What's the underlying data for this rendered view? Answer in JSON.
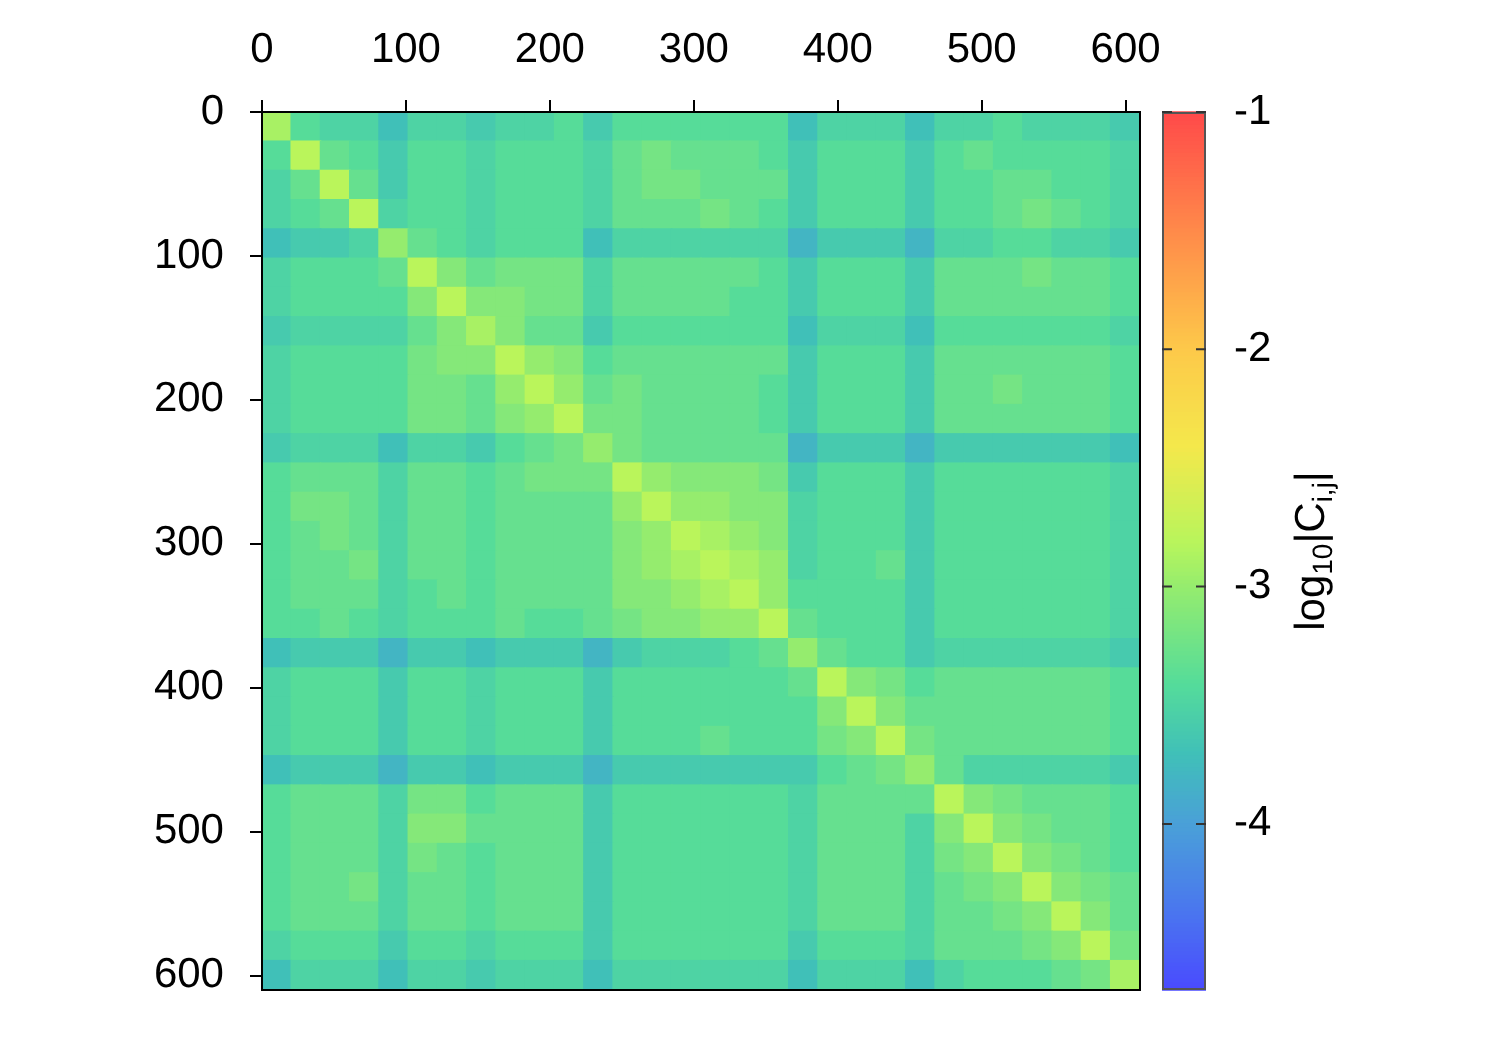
{
  "chart_data": {
    "type": "heatmap",
    "clabel": "log$_{10}$|C$_{i,j}$|",
    "xlim": [
      0,
      610
    ],
    "xticks": [
      0,
      100,
      200,
      300,
      400,
      500,
      600
    ],
    "ylim": [
      610,
      0
    ],
    "yticks": [
      0,
      100,
      200,
      300,
      400,
      500,
      600
    ],
    "clim": [
      -4.7,
      -1
    ],
    "cticks": [
      -1,
      -2,
      -3,
      -4
    ],
    "cells": [
      [
        -2.9,
        -3.4,
        -3.5,
        -3.5,
        -3.7,
        -3.5,
        -3.5,
        -3.6,
        -3.5,
        -3.5,
        -3.4,
        -3.6,
        -3.4,
        -3.4,
        -3.4,
        -3.4,
        -3.4,
        -3.4,
        -3.7,
        -3.5,
        -3.5,
        -3.5,
        -3.7,
        -3.5,
        -3.5,
        -3.4,
        -3.5,
        -3.5,
        -3.5,
        -3.6
      ],
      [
        -3.4,
        -2.8,
        -3.3,
        -3.4,
        -3.6,
        -3.4,
        -3.4,
        -3.5,
        -3.4,
        -3.4,
        -3.4,
        -3.5,
        -3.3,
        -3.2,
        -3.3,
        -3.3,
        -3.3,
        -3.4,
        -3.6,
        -3.4,
        -3.4,
        -3.4,
        -3.6,
        -3.4,
        -3.3,
        -3.4,
        -3.4,
        -3.4,
        -3.4,
        -3.5
      ],
      [
        -3.5,
        -3.3,
        -2.8,
        -3.3,
        -3.6,
        -3.4,
        -3.4,
        -3.5,
        -3.4,
        -3.4,
        -3.4,
        -3.5,
        -3.3,
        -3.2,
        -3.2,
        -3.3,
        -3.3,
        -3.3,
        -3.6,
        -3.4,
        -3.4,
        -3.4,
        -3.6,
        -3.4,
        -3.4,
        -3.3,
        -3.3,
        -3.4,
        -3.4,
        -3.5
      ],
      [
        -3.5,
        -3.4,
        -3.3,
        -2.8,
        -3.5,
        -3.4,
        -3.4,
        -3.5,
        -3.4,
        -3.4,
        -3.4,
        -3.5,
        -3.3,
        -3.3,
        -3.3,
        -3.2,
        -3.3,
        -3.4,
        -3.6,
        -3.4,
        -3.4,
        -3.4,
        -3.6,
        -3.4,
        -3.4,
        -3.3,
        -3.2,
        -3.3,
        -3.4,
        -3.5
      ],
      [
        -3.7,
        -3.6,
        -3.6,
        -3.5,
        -3.0,
        -3.3,
        -3.4,
        -3.5,
        -3.4,
        -3.4,
        -3.4,
        -3.7,
        -3.5,
        -3.5,
        -3.5,
        -3.5,
        -3.5,
        -3.5,
        -3.8,
        -3.6,
        -3.6,
        -3.6,
        -3.8,
        -3.5,
        -3.5,
        -3.4,
        -3.4,
        -3.5,
        -3.5,
        -3.6
      ],
      [
        -3.5,
        -3.4,
        -3.4,
        -3.4,
        -3.3,
        -2.8,
        -3.1,
        -3.3,
        -3.2,
        -3.2,
        -3.2,
        -3.5,
        -3.3,
        -3.3,
        -3.3,
        -3.3,
        -3.3,
        -3.4,
        -3.6,
        -3.4,
        -3.4,
        -3.4,
        -3.6,
        -3.3,
        -3.3,
        -3.3,
        -3.2,
        -3.3,
        -3.3,
        -3.4
      ],
      [
        -3.5,
        -3.4,
        -3.4,
        -3.4,
        -3.4,
        -3.1,
        -2.8,
        -3.1,
        -3.1,
        -3.2,
        -3.2,
        -3.5,
        -3.3,
        -3.3,
        -3.3,
        -3.3,
        -3.4,
        -3.4,
        -3.6,
        -3.4,
        -3.4,
        -3.4,
        -3.6,
        -3.3,
        -3.3,
        -3.3,
        -3.3,
        -3.3,
        -3.3,
        -3.4
      ],
      [
        -3.6,
        -3.5,
        -3.5,
        -3.5,
        -3.5,
        -3.3,
        -3.1,
        -2.9,
        -3.1,
        -3.3,
        -3.3,
        -3.6,
        -3.4,
        -3.4,
        -3.4,
        -3.4,
        -3.4,
        -3.4,
        -3.7,
        -3.5,
        -3.5,
        -3.5,
        -3.7,
        -3.4,
        -3.4,
        -3.4,
        -3.4,
        -3.4,
        -3.4,
        -3.5
      ],
      [
        -3.5,
        -3.4,
        -3.4,
        -3.4,
        -3.4,
        -3.2,
        -3.1,
        -3.1,
        -2.8,
        -3.0,
        -3.1,
        -3.4,
        -3.3,
        -3.3,
        -3.3,
        -3.3,
        -3.3,
        -3.3,
        -3.6,
        -3.4,
        -3.4,
        -3.4,
        -3.6,
        -3.3,
        -3.3,
        -3.3,
        -3.3,
        -3.3,
        -3.3,
        -3.4
      ],
      [
        -3.5,
        -3.4,
        -3.4,
        -3.4,
        -3.4,
        -3.2,
        -3.2,
        -3.3,
        -3.0,
        -2.8,
        -3.0,
        -3.3,
        -3.2,
        -3.3,
        -3.3,
        -3.3,
        -3.3,
        -3.4,
        -3.6,
        -3.4,
        -3.4,
        -3.4,
        -3.6,
        -3.3,
        -3.3,
        -3.2,
        -3.3,
        -3.3,
        -3.3,
        -3.4
      ],
      [
        -3.5,
        -3.4,
        -3.4,
        -3.4,
        -3.4,
        -3.2,
        -3.2,
        -3.3,
        -3.1,
        -3.0,
        -2.8,
        -3.2,
        -3.2,
        -3.3,
        -3.3,
        -3.3,
        -3.3,
        -3.4,
        -3.6,
        -3.4,
        -3.4,
        -3.4,
        -3.6,
        -3.3,
        -3.3,
        -3.3,
        -3.3,
        -3.3,
        -3.3,
        -3.4
      ],
      [
        -3.6,
        -3.5,
        -3.5,
        -3.5,
        -3.7,
        -3.5,
        -3.5,
        -3.6,
        -3.4,
        -3.3,
        -3.2,
        -3.0,
        -3.2,
        -3.3,
        -3.3,
        -3.3,
        -3.3,
        -3.3,
        -3.8,
        -3.6,
        -3.6,
        -3.6,
        -3.8,
        -3.6,
        -3.6,
        -3.6,
        -3.6,
        -3.6,
        -3.6,
        -3.7
      ],
      [
        -3.4,
        -3.3,
        -3.3,
        -3.3,
        -3.5,
        -3.3,
        -3.3,
        -3.4,
        -3.3,
        -3.2,
        -3.2,
        -3.2,
        -2.8,
        -3.0,
        -3.1,
        -3.1,
        -3.1,
        -3.2,
        -3.6,
        -3.4,
        -3.4,
        -3.4,
        -3.6,
        -3.4,
        -3.4,
        -3.4,
        -3.4,
        -3.4,
        -3.4,
        -3.5
      ],
      [
        -3.4,
        -3.2,
        -3.2,
        -3.3,
        -3.5,
        -3.3,
        -3.3,
        -3.4,
        -3.3,
        -3.3,
        -3.3,
        -3.3,
        -3.0,
        -2.8,
        -3.0,
        -3.0,
        -3.1,
        -3.1,
        -3.5,
        -3.4,
        -3.4,
        -3.4,
        -3.6,
        -3.4,
        -3.4,
        -3.4,
        -3.4,
        -3.4,
        -3.4,
        -3.5
      ],
      [
        -3.4,
        -3.3,
        -3.2,
        -3.3,
        -3.5,
        -3.3,
        -3.3,
        -3.4,
        -3.3,
        -3.3,
        -3.3,
        -3.3,
        -3.1,
        -3.0,
        -2.8,
        -2.9,
        -3.0,
        -3.1,
        -3.5,
        -3.4,
        -3.4,
        -3.4,
        -3.6,
        -3.4,
        -3.4,
        -3.4,
        -3.4,
        -3.4,
        -3.4,
        -3.5
      ],
      [
        -3.4,
        -3.3,
        -3.3,
        -3.2,
        -3.5,
        -3.3,
        -3.3,
        -3.4,
        -3.3,
        -3.3,
        -3.3,
        -3.3,
        -3.1,
        -3.0,
        -2.9,
        -2.8,
        -2.9,
        -3.0,
        -3.5,
        -3.4,
        -3.4,
        -3.3,
        -3.6,
        -3.4,
        -3.4,
        -3.4,
        -3.4,
        -3.4,
        -3.4,
        -3.5
      ],
      [
        -3.4,
        -3.3,
        -3.3,
        -3.3,
        -3.5,
        -3.4,
        -3.3,
        -3.4,
        -3.3,
        -3.3,
        -3.3,
        -3.3,
        -3.1,
        -3.1,
        -3.0,
        -2.9,
        -2.8,
        -3.0,
        -3.4,
        -3.4,
        -3.4,
        -3.4,
        -3.6,
        -3.4,
        -3.4,
        -3.4,
        -3.4,
        -3.4,
        -3.4,
        -3.5
      ],
      [
        -3.4,
        -3.4,
        -3.3,
        -3.4,
        -3.5,
        -3.4,
        -3.4,
        -3.4,
        -3.3,
        -3.4,
        -3.4,
        -3.3,
        -3.2,
        -3.1,
        -3.1,
        -3.0,
        -3.0,
        -2.8,
        -3.3,
        -3.4,
        -3.4,
        -3.4,
        -3.6,
        -3.4,
        -3.4,
        -3.4,
        -3.4,
        -3.4,
        -3.4,
        -3.5
      ],
      [
        -3.7,
        -3.6,
        -3.6,
        -3.6,
        -3.8,
        -3.6,
        -3.6,
        -3.7,
        -3.6,
        -3.6,
        -3.6,
        -3.8,
        -3.6,
        -3.5,
        -3.5,
        -3.5,
        -3.4,
        -3.3,
        -3.0,
        -3.3,
        -3.4,
        -3.4,
        -3.6,
        -3.5,
        -3.5,
        -3.5,
        -3.5,
        -3.5,
        -3.5,
        -3.6
      ],
      [
        -3.5,
        -3.4,
        -3.4,
        -3.4,
        -3.6,
        -3.4,
        -3.4,
        -3.5,
        -3.4,
        -3.4,
        -3.4,
        -3.6,
        -3.4,
        -3.4,
        -3.4,
        -3.4,
        -3.4,
        -3.4,
        -3.3,
        -2.8,
        -3.1,
        -3.2,
        -3.4,
        -3.3,
        -3.3,
        -3.3,
        -3.3,
        -3.3,
        -3.3,
        -3.4
      ],
      [
        -3.5,
        -3.4,
        -3.4,
        -3.4,
        -3.6,
        -3.4,
        -3.4,
        -3.5,
        -3.4,
        -3.4,
        -3.4,
        -3.6,
        -3.4,
        -3.4,
        -3.4,
        -3.4,
        -3.4,
        -3.4,
        -3.4,
        -3.1,
        -2.8,
        -3.1,
        -3.3,
        -3.3,
        -3.3,
        -3.3,
        -3.3,
        -3.3,
        -3.3,
        -3.4
      ],
      [
        -3.5,
        -3.4,
        -3.4,
        -3.4,
        -3.6,
        -3.4,
        -3.4,
        -3.5,
        -3.4,
        -3.4,
        -3.4,
        -3.6,
        -3.4,
        -3.4,
        -3.4,
        -3.3,
        -3.4,
        -3.4,
        -3.4,
        -3.2,
        -3.1,
        -2.8,
        -3.2,
        -3.3,
        -3.3,
        -3.3,
        -3.3,
        -3.3,
        -3.3,
        -3.4
      ],
      [
        -3.7,
        -3.6,
        -3.6,
        -3.6,
        -3.8,
        -3.6,
        -3.6,
        -3.7,
        -3.6,
        -3.6,
        -3.6,
        -3.8,
        -3.6,
        -3.6,
        -3.6,
        -3.6,
        -3.6,
        -3.6,
        -3.6,
        -3.4,
        -3.3,
        -3.2,
        -3.0,
        -3.3,
        -3.5,
        -3.5,
        -3.5,
        -3.5,
        -3.5,
        -3.6
      ],
      [
        -3.4,
        -3.3,
        -3.3,
        -3.3,
        -3.5,
        -3.2,
        -3.2,
        -3.4,
        -3.3,
        -3.3,
        -3.3,
        -3.6,
        -3.4,
        -3.4,
        -3.4,
        -3.4,
        -3.4,
        -3.4,
        -3.5,
        -3.3,
        -3.3,
        -3.3,
        -3.3,
        -2.8,
        -3.1,
        -3.2,
        -3.3,
        -3.3,
        -3.3,
        -3.4
      ],
      [
        -3.4,
        -3.3,
        -3.3,
        -3.3,
        -3.5,
        -3.1,
        -3.1,
        -3.3,
        -3.3,
        -3.3,
        -3.3,
        -3.6,
        -3.4,
        -3.4,
        -3.4,
        -3.4,
        -3.4,
        -3.4,
        -3.5,
        -3.3,
        -3.3,
        -3.3,
        -3.5,
        -3.1,
        -2.8,
        -3.1,
        -3.2,
        -3.3,
        -3.3,
        -3.4
      ],
      [
        -3.4,
        -3.3,
        -3.3,
        -3.3,
        -3.5,
        -3.2,
        -3.3,
        -3.4,
        -3.3,
        -3.3,
        -3.3,
        -3.6,
        -3.4,
        -3.4,
        -3.4,
        -3.4,
        -3.4,
        -3.4,
        -3.5,
        -3.3,
        -3.3,
        -3.3,
        -3.5,
        -3.2,
        -3.1,
        -2.8,
        -3.1,
        -3.2,
        -3.3,
        -3.4
      ],
      [
        -3.4,
        -3.3,
        -3.3,
        -3.2,
        -3.5,
        -3.3,
        -3.3,
        -3.4,
        -3.3,
        -3.3,
        -3.3,
        -3.6,
        -3.4,
        -3.4,
        -3.4,
        -3.4,
        -3.4,
        -3.4,
        -3.5,
        -3.3,
        -3.3,
        -3.3,
        -3.5,
        -3.3,
        -3.2,
        -3.1,
        -2.8,
        -3.1,
        -3.2,
        -3.3
      ],
      [
        -3.4,
        -3.3,
        -3.3,
        -3.3,
        -3.5,
        -3.3,
        -3.3,
        -3.4,
        -3.3,
        -3.3,
        -3.3,
        -3.6,
        -3.4,
        -3.4,
        -3.4,
        -3.4,
        -3.4,
        -3.4,
        -3.5,
        -3.3,
        -3.3,
        -3.3,
        -3.5,
        -3.3,
        -3.3,
        -3.2,
        -3.1,
        -2.8,
        -3.1,
        -3.3
      ],
      [
        -3.5,
        -3.4,
        -3.4,
        -3.4,
        -3.6,
        -3.4,
        -3.4,
        -3.5,
        -3.4,
        -3.4,
        -3.4,
        -3.6,
        -3.4,
        -3.4,
        -3.4,
        -3.4,
        -3.4,
        -3.4,
        -3.6,
        -3.4,
        -3.4,
        -3.4,
        -3.5,
        -3.3,
        -3.3,
        -3.3,
        -3.2,
        -3.1,
        -2.8,
        -3.2
      ],
      [
        -3.7,
        -3.5,
        -3.5,
        -3.5,
        -3.7,
        -3.5,
        -3.5,
        -3.6,
        -3.5,
        -3.5,
        -3.5,
        -3.7,
        -3.5,
        -3.5,
        -3.5,
        -3.5,
        -3.5,
        -3.5,
        -3.7,
        -3.5,
        -3.5,
        -3.5,
        -3.7,
        -3.5,
        -3.4,
        -3.4,
        -3.4,
        -3.3,
        -3.2,
        -2.9
      ]
    ]
  }
}
